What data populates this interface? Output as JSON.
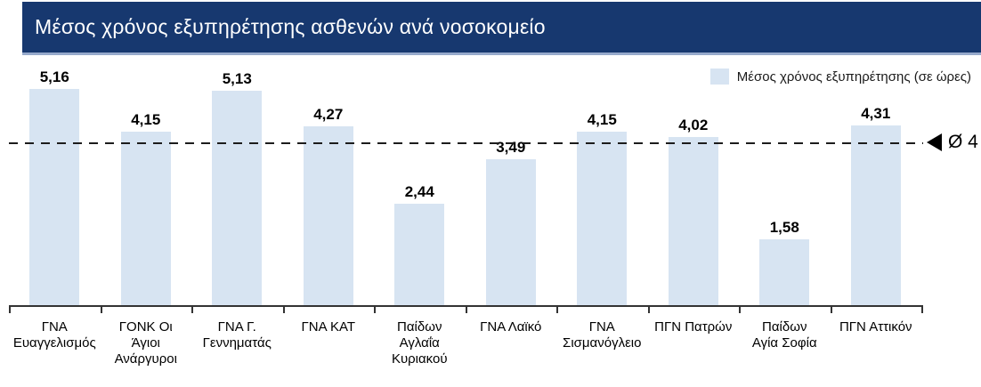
{
  "header": {
    "title": "Μέσος χρόνος εξυπηρέτησης ασθενών ανά νοσοκομείο"
  },
  "legend": {
    "label": "Μέσος χρόνος εξυπηρέτησης (σε ώρες)"
  },
  "average_line": {
    "label": "Ø 4",
    "value": 3.87,
    "marker_icon": "left-triangle-icon"
  },
  "colors": {
    "header_bg": "#17386f",
    "header_underline": "#96a9cb",
    "header_text": "#ffffff",
    "bar_fill": "#d7e4f2",
    "axis": "#333333",
    "dashed_line": "#1c1c1c"
  },
  "chart_data": {
    "type": "bar",
    "title": "Μέσος χρόνος εξυπηρέτησης ασθενών ανά νοσοκομείο",
    "xlabel": "",
    "ylabel": "",
    "ylim": [
      0,
      5.5
    ],
    "grid": false,
    "legend_position": "top-right",
    "legend_entries": [
      "Μέσος χρόνος εξυπηρέτησης (σε ώρες)"
    ],
    "categories": [
      "ΓΝΑ Ευαγγελισμός",
      "ΓΟΝΚ Οι Άγιοι Ανάργυροι",
      "ΓΝΑ Γ. Γεννηματάς",
      "ΓΝΑ ΚΑΤ",
      "Παίδων Αγλαΐα Κυριακού",
      "ΓΝΑ Λαϊκό",
      "ΓΝΑ Σισμανόγλειο",
      "ΠΓΝ Πατρών",
      "Παίδων Αγία Σοφία",
      "ΠΓΝ Αττικόν"
    ],
    "category_lines": [
      [
        "ΓΝΑ",
        "Ευαγγελισμός"
      ],
      [
        "ΓΟΝΚ Οι",
        "Άγιοι",
        "Ανάργυροι"
      ],
      [
        "ΓΝΑ Γ.",
        "Γεννηματάς"
      ],
      [
        "ΓΝΑ ΚΑΤ"
      ],
      [
        "Παίδων",
        "Αγλαΐα",
        "Κυριακού"
      ],
      [
        "ΓΝΑ Λαϊκό"
      ],
      [
        "ΓΝΑ",
        "Σισμανόγλειο"
      ],
      [
        "ΠΓΝ Πατρών"
      ],
      [
        "Παίδων",
        "Αγία Σοφία"
      ],
      [
        "ΠΓΝ Αττικόν"
      ]
    ],
    "values": [
      5.16,
      4.15,
      5.13,
      4.27,
      2.44,
      3.49,
      4.15,
      4.02,
      1.58,
      4.31
    ],
    "value_labels": [
      "5,16",
      "4,15",
      "5,13",
      "4,27",
      "2,44",
      "3,49",
      "4,15",
      "4,02",
      "1,58",
      "4,31"
    ],
    "annotations": [
      {
        "text": "Ø 4",
        "value": 3.87,
        "type": "average-line"
      }
    ]
  }
}
